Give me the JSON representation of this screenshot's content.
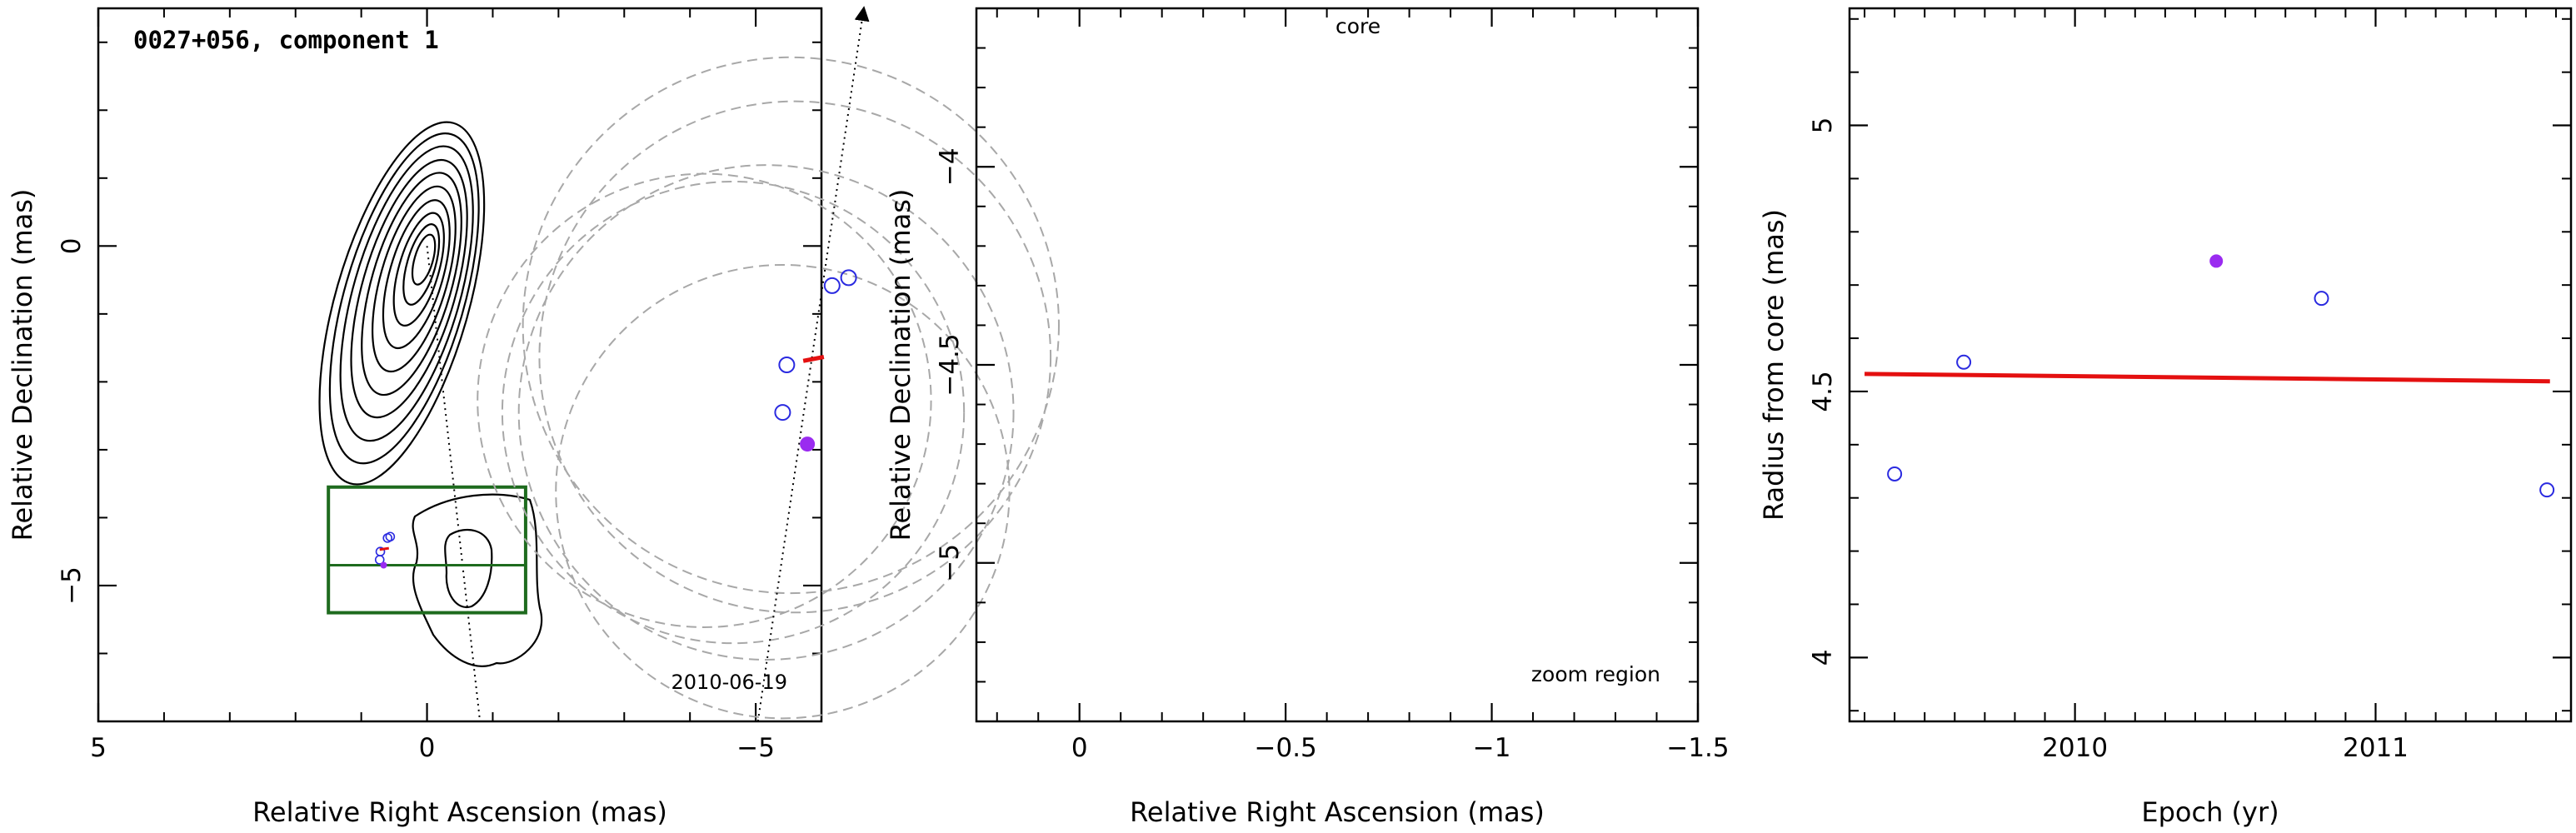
{
  "panel1": {
    "title": "0027+056, component 1",
    "date": "2010-06-19",
    "xlabel": "Relative Right Ascension (mas)",
    "ylabel": "Relative Declination (mas)"
  },
  "panel2": {
    "core_label": "core",
    "zoom_label": "zoom region",
    "xlabel": "Relative Right Ascension (mas)",
    "ylabel": "Relative Declination (mas)"
  },
  "panel3": {
    "xlabel": "Epoch (yr)",
    "ylabel": "Radius from core (mas)"
  },
  "colors": {
    "contour": "#000000",
    "fit": "#e41010",
    "highlight": "#9a2bf0",
    "epoch_points": "#2a2ae0",
    "box": "#1e6b1e",
    "beam": "#a8a8a8"
  },
  "chart_data": [
    {
      "type": "contour",
      "xlim": [
        5,
        -6
      ],
      "ylim": [
        -7,
        3.5
      ],
      "xticks": [
        "5",
        "0",
        "-5"
      ],
      "yticks": [
        "0",
        "-5"
      ],
      "core_position": [
        0,
        0
      ],
      "component_position": [
        0.66,
        -4.7
      ],
      "zoom_box": {
        "x": [
          1.5,
          -1.5
        ],
        "y": [
          -3.55,
          -5.4
        ]
      },
      "trajectory": {
        "from": [
          0,
          0
        ],
        "direction_deg": 168
      }
    },
    {
      "type": "scatter",
      "xlim": [
        0.25,
        -1.5
      ],
      "ylim": [
        -5.4,
        -3.6
      ],
      "xticks": [
        "0",
        "-0.5",
        "-1",
        "-1.5"
      ],
      "yticks": [
        "-4",
        "-4.5",
        "-5"
      ],
      "points": [
        {
          "x": 0.56,
          "y": -4.28,
          "epoch": 2009.4
        },
        {
          "x": 0.6,
          "y": -4.3,
          "epoch": 2009.63
        },
        {
          "x": 0.71,
          "y": -4.5,
          "epoch": 2010.82
        },
        {
          "x": 0.72,
          "y": -4.62,
          "epoch": 2011.57
        }
      ],
      "highlight_point": {
        "x": 0.66,
        "y": -4.7,
        "epoch": 2010.47
      },
      "fit_segment": [
        [
          0.62,
          -4.48
        ],
        [
          0.67,
          -4.49
        ]
      ],
      "beams": [
        {
          "cx": 0.7,
          "cy": -4.4,
          "r": 0.65
        },
        {
          "cx": 0.69,
          "cy": -4.48,
          "r": 0.62
        },
        {
          "cx": 0.84,
          "cy": -4.62,
          "r": 0.56
        },
        {
          "cx": 0.76,
          "cy": -4.62,
          "r": 0.6
        },
        {
          "cx": 0.72,
          "cy": -4.82,
          "r": 0.55
        },
        {
          "cx": 0.91,
          "cy": -4.59,
          "r": 0.55
        }
      ]
    },
    {
      "type": "scatter",
      "xlim": [
        2009.25,
        2011.65
      ],
      "ylim": [
        3.88,
        5.22
      ],
      "xticks": [
        "2010",
        "2011"
      ],
      "yticks": [
        "4",
        "4.5",
        "5"
      ],
      "points": [
        {
          "x": 2009.4,
          "y": 4.345
        },
        {
          "x": 2009.63,
          "y": 4.555
        },
        {
          "x": 2010.82,
          "y": 4.675
        },
        {
          "x": 2011.57,
          "y": 4.315
        }
      ],
      "highlight_point": {
        "x": 2010.47,
        "y": 4.745
      },
      "fit_line": {
        "x": [
          2009.3,
          2011.58
        ],
        "y": [
          4.533,
          4.519
        ]
      }
    }
  ]
}
